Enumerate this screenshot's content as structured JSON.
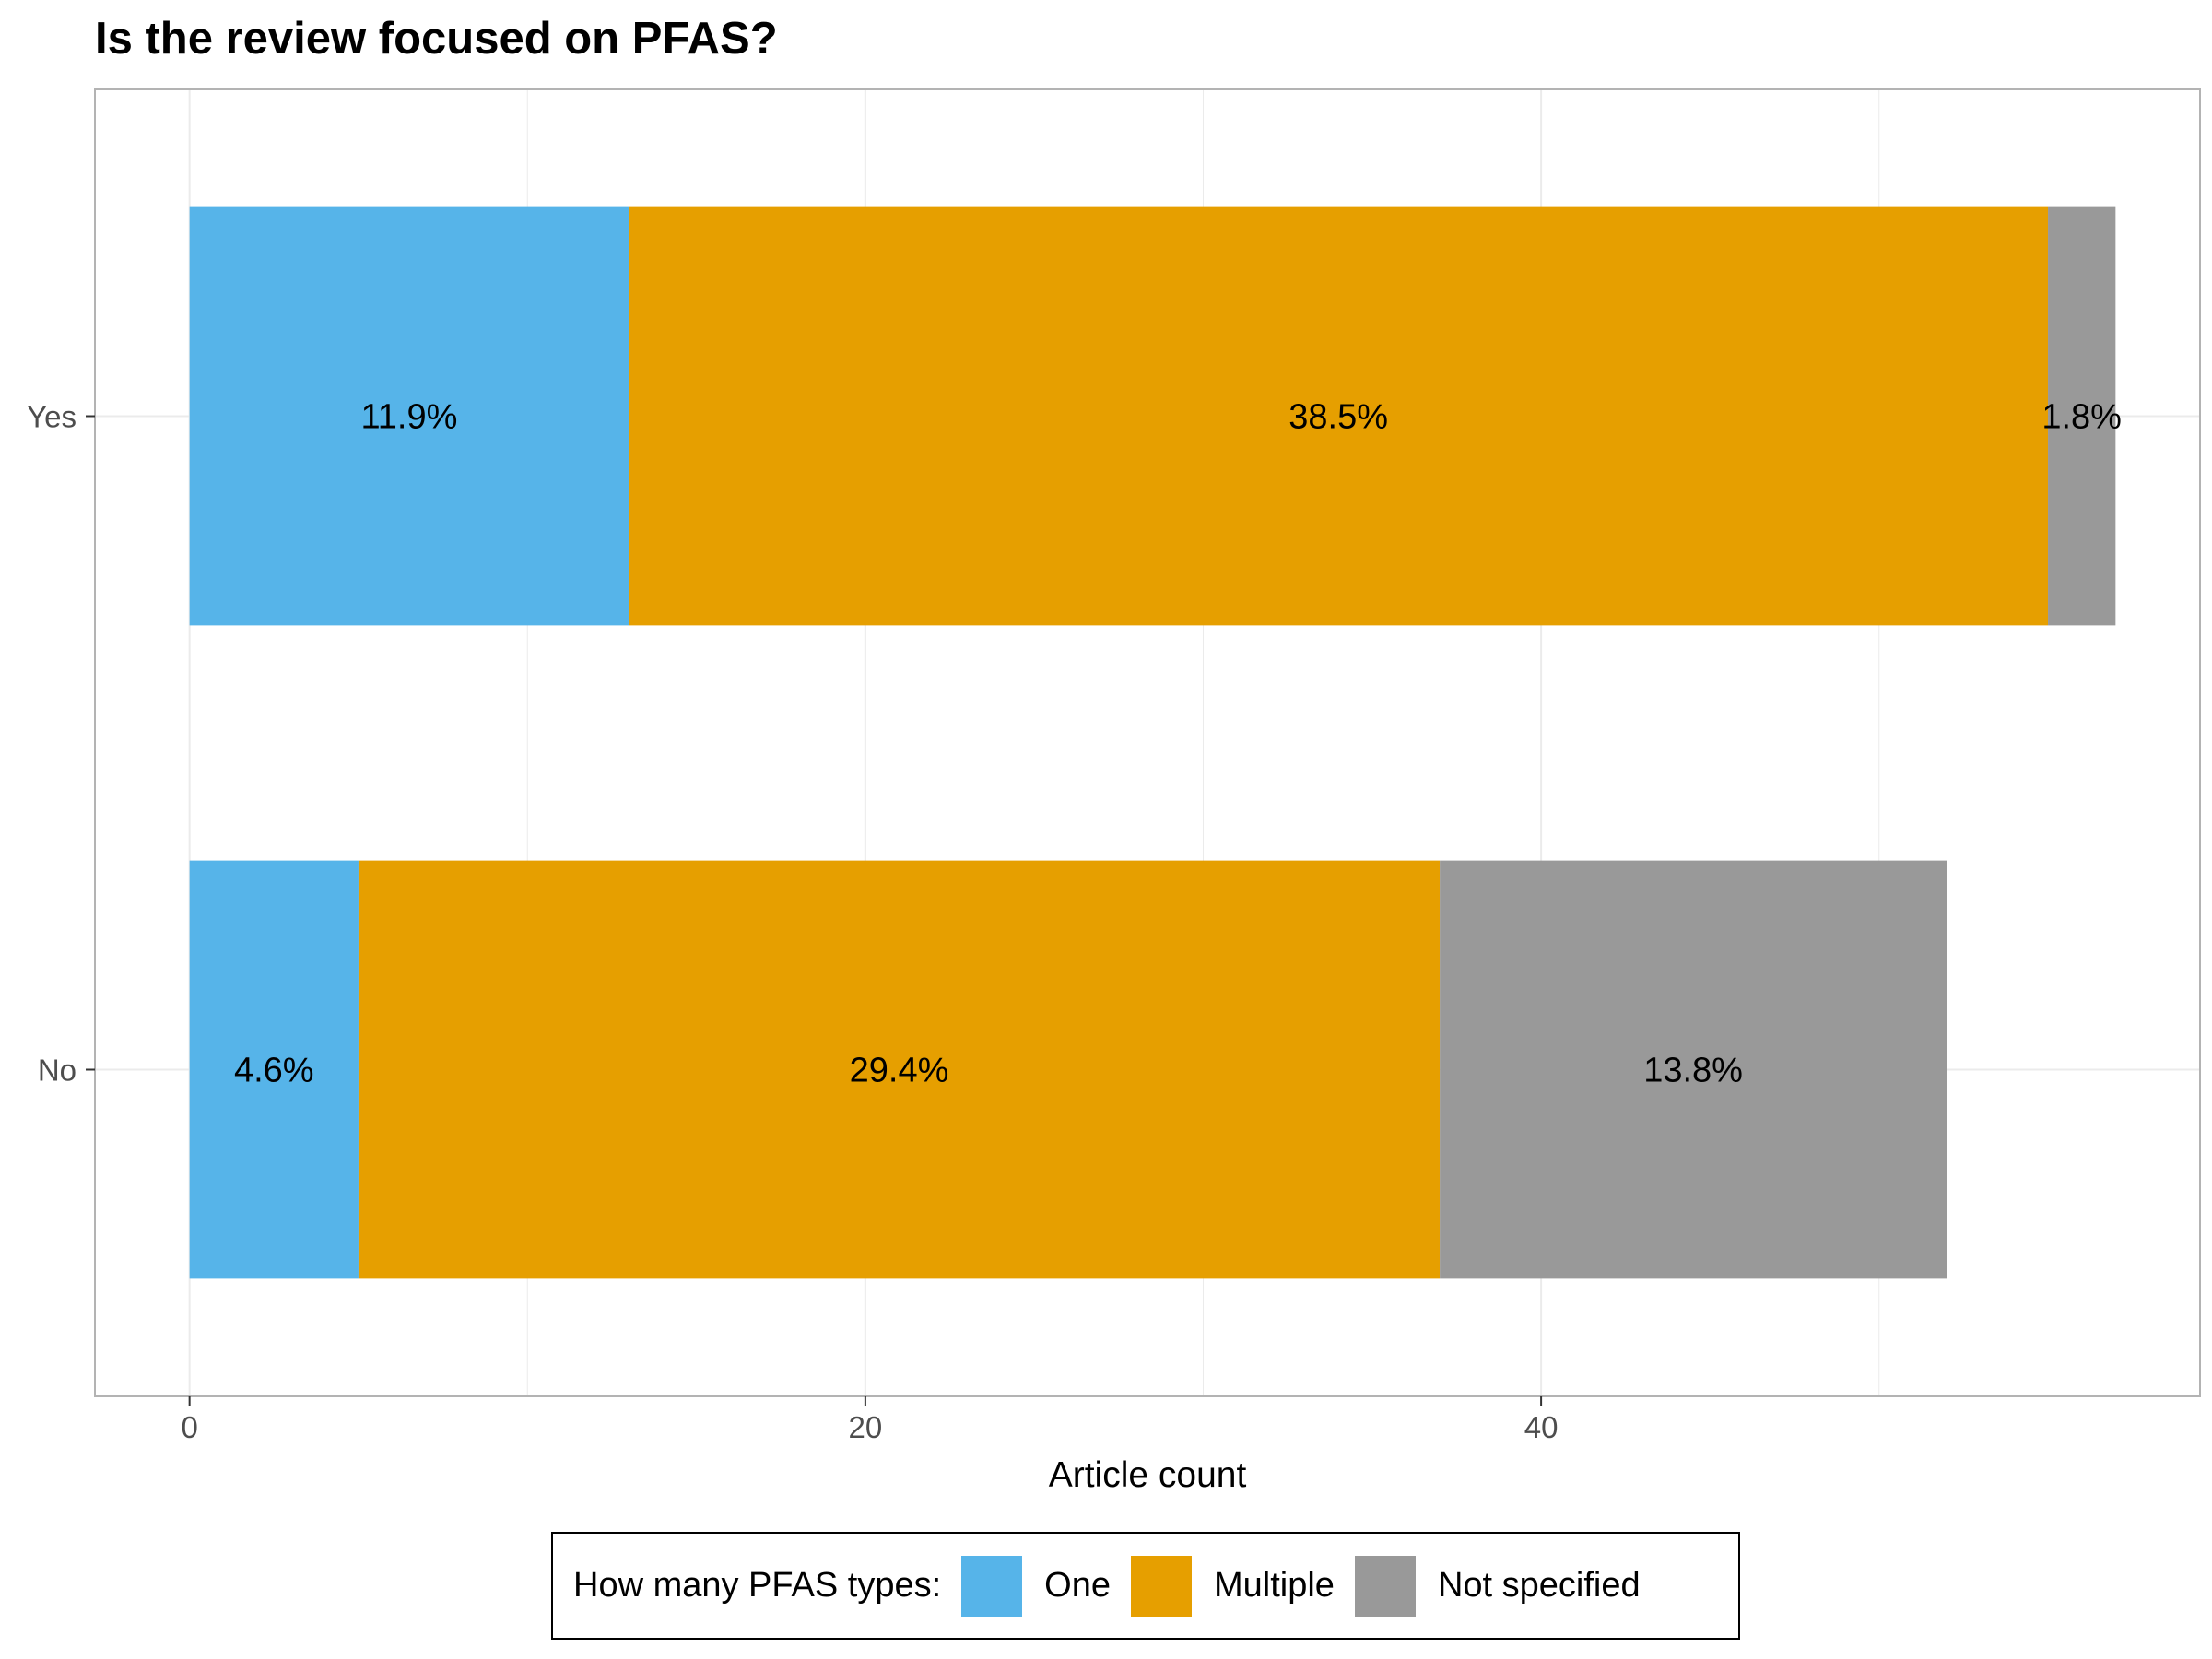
{
  "chart_data": {
    "type": "bar",
    "orientation": "horizontal",
    "stacked": true,
    "title": "Is the review focused on PFAS?",
    "xlabel": "Article count",
    "ylabel": "",
    "categories": [
      "Yes",
      "No"
    ],
    "xlim": [
      -2.8,
      59.5
    ],
    "xticks": [
      0,
      20,
      40
    ],
    "grid": true,
    "legend_position": "bottom",
    "legend_title": "How many PFAS types:",
    "series": [
      {
        "name": "One",
        "color": "#56B4E9",
        "values": [
          13,
          5
        ],
        "labels": [
          "11.9%",
          "4.6%"
        ]
      },
      {
        "name": "Multiple",
        "color": "#E69F00",
        "values": [
          42,
          32
        ],
        "labels": [
          "38.5%",
          "29.4%"
        ]
      },
      {
        "name": "Not specified",
        "color": "#999999",
        "values": [
          2,
          15
        ],
        "labels": [
          "1.8%",
          "13.8%"
        ]
      }
    ]
  }
}
